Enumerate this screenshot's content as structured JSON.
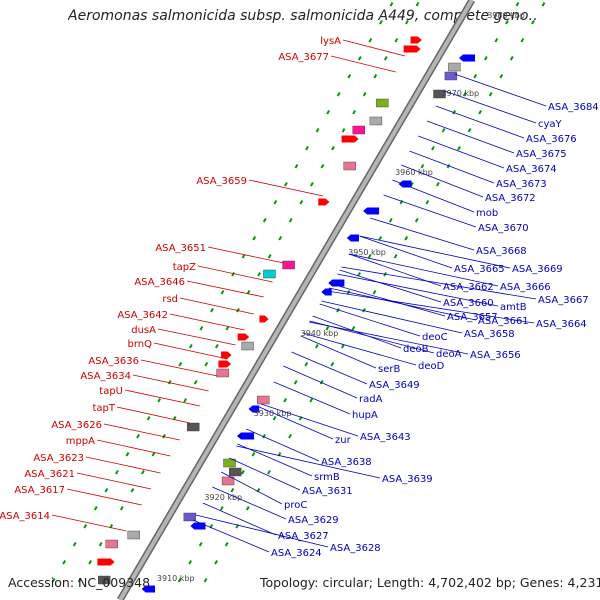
{
  "title": "Aeromonas salmonicida subsp. salmonicida A449, complete geno…",
  "footer": {
    "accession": "Accession: NC_009348",
    "summary": "Topology: circular; Length: 4,702,402 bp; Genes: 4,231"
  },
  "colors": {
    "left_label": "#cc0000",
    "right_label": "#0000bb",
    "backbone": "#999999",
    "forward_gene": "#ff0000",
    "reverse_gene": "#0000ff",
    "tick_dot": "#009900"
  },
  "ticks": [
    "3910 kbp",
    "3920 kbp",
    "3930 kbp",
    "3940 kbp",
    "3950 kbp",
    "3960 kbp",
    "3970 kbp",
    "3980 kbp"
  ],
  "left_labels": [
    "lysA",
    "ASA_3677",
    "ASA_3659",
    "ASA_3651",
    "tapZ",
    "ASA_3646",
    "rsd",
    "ASA_3642",
    "dusA",
    "brnQ",
    "ASA_3636",
    "ASA_3634",
    "tapU",
    "tapT",
    "ASA_3626",
    "mppA",
    "ASA_3623",
    "ASA_3621",
    "ASA_3617",
    "ASA_3614"
  ],
  "right_labels": [
    "ASA_3684",
    "cyaY",
    "ASA_3676",
    "ASA_3675",
    "ASA_3674",
    "ASA_3673",
    "ASA_3672",
    "mob",
    "ASA_3670",
    "ASA_3668",
    "ASA_3669",
    "ASA_3665",
    "ASA_3666",
    "ASA_3662",
    "ASA_3667",
    "amtB",
    "ASA_3660",
    "ASA_3661",
    "ASA_3664",
    "ASA_3657",
    "ASA_3658",
    "deoC",
    "deoA",
    "ASA_3656",
    "deoB",
    "serB",
    "deoD",
    "ASA_3649",
    "radA",
    "hupA",
    "ASA_3643",
    "zur",
    "ASA_3638",
    "ASA_3639",
    "srmB",
    "ASA_3631",
    "proC",
    "ASA_3629",
    "ASA_3627",
    "ASA_3628",
    "ASA_3624"
  ]
}
